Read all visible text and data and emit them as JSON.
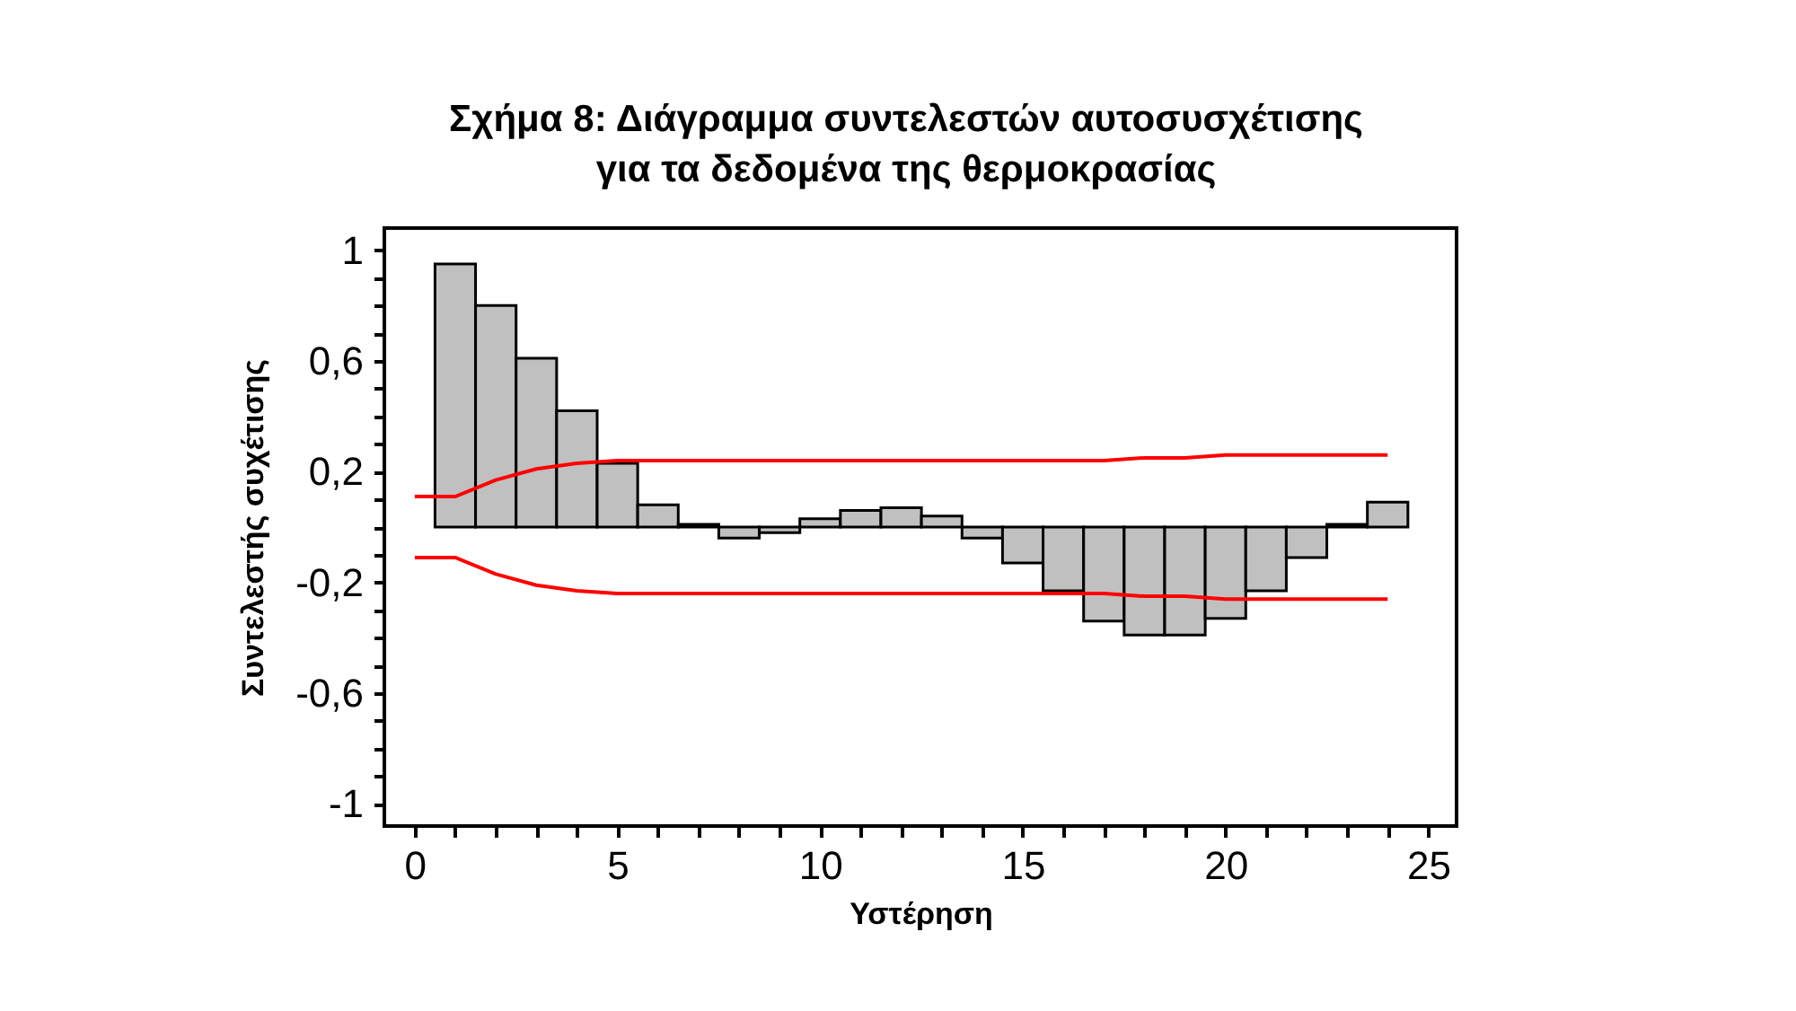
{
  "chart_data": {
    "type": "bar",
    "title": "Σχήμα 8:  Διάγραμμα συντελεστών αυτοσυσχέτισης\nγια τα δεδομένα της θερμοκρασίας",
    "xlabel": "Υστέρηση",
    "ylabel": "Συντελεστής συχέτισης",
    "xlim": [
      -0.75,
      25.7
    ],
    "ylim": [
      -1.08,
      1.08
    ],
    "xticks": [
      0,
      {
        "value": 1,
        "label": null
      },
      {
        "value": 2,
        "label": null
      },
      {
        "value": 3,
        "label": null
      },
      {
        "value": 4,
        "label": null
      },
      5,
      {
        "value": 6,
        "label": null
      },
      {
        "value": 7,
        "label": null
      },
      {
        "value": 8,
        "label": null
      },
      {
        "value": 9,
        "label": null
      },
      10,
      {
        "value": 11,
        "label": null
      },
      {
        "value": 12,
        "label": null
      },
      {
        "value": 13,
        "label": null
      },
      {
        "value": 14,
        "label": null
      },
      15,
      {
        "value": 16,
        "label": null
      },
      {
        "value": 17,
        "label": null
      },
      {
        "value": 18,
        "label": null
      },
      {
        "value": 19,
        "label": null
      },
      20,
      {
        "value": 21,
        "label": null
      },
      {
        "value": 22,
        "label": null
      },
      {
        "value": 23,
        "label": null
      },
      {
        "value": 24,
        "label": null
      },
      25
    ],
    "yticks": [
      -1,
      {
        "value": -0.9,
        "label": null
      },
      {
        "value": -0.8,
        "label": null
      },
      {
        "value": -0.7,
        "label": null
      },
      {
        "value": -0.6,
        "label": "-0,6"
      },
      {
        "value": -0.5,
        "label": null
      },
      {
        "value": -0.4,
        "label": null
      },
      {
        "value": -0.3,
        "label": null
      },
      {
        "value": -0.2,
        "label": "-0,2"
      },
      {
        "value": -0.1,
        "label": null
      },
      {
        "value": 0,
        "label": null
      },
      {
        "value": 0.1,
        "label": null
      },
      {
        "value": 0.2,
        "label": "0,2"
      },
      {
        "value": 0.3,
        "label": null
      },
      {
        "value": 0.4,
        "label": null
      },
      {
        "value": 0.5,
        "label": null
      },
      {
        "value": 0.6,
        "label": "0,6"
      },
      {
        "value": 0.7,
        "label": null
      },
      {
        "value": 0.8,
        "label": null
      },
      {
        "value": 0.9,
        "label": null
      },
      1
    ],
    "grid": false,
    "marker": "none",
    "line_style": "solid",
    "series": [
      {
        "color": "#c0c0c0",
        "x": [
          1,
          2,
          3,
          4,
          5,
          6,
          7,
          8,
          9,
          10,
          11,
          12,
          13,
          14,
          15,
          16,
          17,
          18,
          19,
          20,
          21,
          22,
          23,
          24
        ],
        "values": [
          0.95,
          0.8,
          0.61,
          0.42,
          0.23,
          0.08,
          0.01,
          -0.04,
          -0.02,
          0.03,
          0.06,
          0.07,
          0.04,
          -0.04,
          -0.13,
          -0.23,
          -0.34,
          -0.39,
          -0.39,
          -0.33,
          -0.23,
          -0.11,
          0.01,
          0.09
        ]
      },
      {
        "type": "line",
        "color": "#ff0000",
        "x": [
          0,
          1,
          2,
          3,
          4,
          5,
          6,
          7,
          8,
          9,
          10,
          11,
          12,
          13,
          14,
          15,
          16,
          17,
          18,
          19,
          20,
          21,
          22,
          23,
          24
        ],
        "values": [
          0.11,
          0.11,
          0.17,
          0.21,
          0.23,
          0.24,
          0.24,
          0.24,
          0.24,
          0.24,
          0.24,
          0.24,
          0.24,
          0.24,
          0.24,
          0.24,
          0.24,
          0.24,
          0.25,
          0.25,
          0.26,
          0.26,
          0.26,
          0.26,
          0.26
        ]
      },
      {
        "type": "line",
        "color": "#ff0000",
        "x": [
          0,
          1,
          2,
          3,
          4,
          5,
          6,
          7,
          8,
          9,
          10,
          11,
          12,
          13,
          14,
          15,
          16,
          17,
          18,
          19,
          20,
          21,
          22,
          23,
          24
        ],
        "values": [
          -0.11,
          -0.11,
          -0.17,
          -0.21,
          -0.23,
          -0.24,
          -0.24,
          -0.24,
          -0.24,
          -0.24,
          -0.24,
          -0.24,
          -0.24,
          -0.24,
          -0.24,
          -0.24,
          -0.24,
          -0.24,
          -0.25,
          -0.25,
          -0.26,
          -0.26,
          -0.26,
          -0.26,
          -0.26
        ]
      }
    ]
  }
}
